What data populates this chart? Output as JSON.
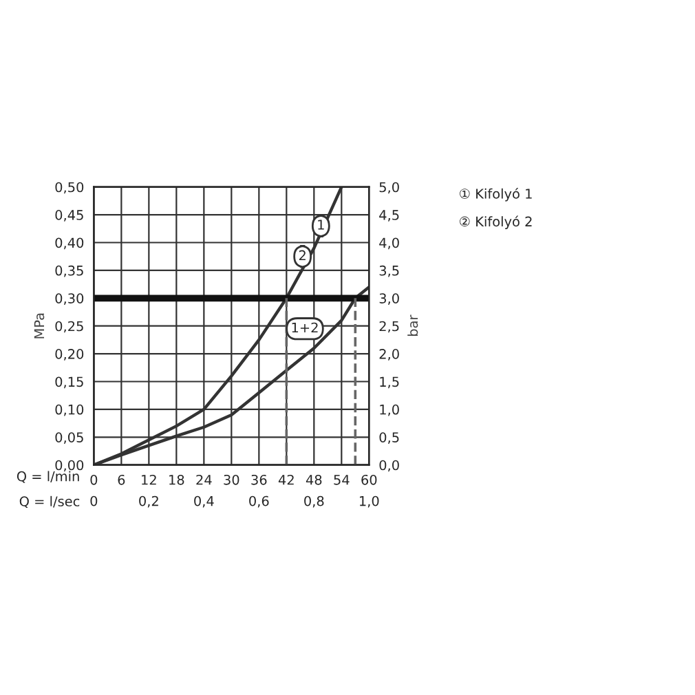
{
  "chart_data": {
    "type": "line",
    "xlabel": "Q = l/min",
    "x2label": "Q = l/sec",
    "ylabel": "MPa",
    "y2label": "bar",
    "xlim": [
      0,
      60
    ],
    "xticks": [
      0,
      6,
      12,
      18,
      24,
      30,
      36,
      42,
      48,
      54,
      60
    ],
    "x2lim": [
      0,
      1
    ],
    "x2ticks": [
      0,
      {
        "value": 0.2,
        "label": "0,2"
      },
      {
        "value": 0.4,
        "label": "0,4"
      },
      {
        "value": 0.6,
        "label": "0,6"
      },
      {
        "value": 0.8,
        "label": "0,8"
      },
      {
        "value": 1,
        "label": "1,0"
      }
    ],
    "ylim": [
      0,
      0.5
    ],
    "yticks": [
      {
        "value": 0,
        "label": "0,00"
      },
      {
        "value": 0.05,
        "label": "0,05"
      },
      {
        "value": 0.1,
        "label": "0,10"
      },
      {
        "value": 0.15,
        "label": "0,15"
      },
      {
        "value": 0.2,
        "label": "0,20"
      },
      {
        "value": 0.25,
        "label": "0,25"
      },
      {
        "value": 0.3,
        "label": "0,30"
      },
      {
        "value": 0.35,
        "label": "0,35"
      },
      {
        "value": 0.4,
        "label": "0,40"
      },
      {
        "value": 0.45,
        "label": "0,45"
      },
      {
        "value": 0.5,
        "label": "0,50"
      }
    ],
    "y2lim": [
      0,
      5
    ],
    "y2ticks": [
      {
        "value": 0,
        "label": "0,0"
      },
      {
        "value": 0.5,
        "label": "0,5"
      },
      {
        "value": 1,
        "label": "1,0"
      },
      {
        "value": 1.5,
        "label": "1,5"
      },
      {
        "value": 2,
        "label": "2,0"
      },
      {
        "value": 2.5,
        "label": "2,5"
      },
      {
        "value": 3,
        "label": "3,0"
      },
      {
        "value": 3.5,
        "label": "3,5"
      },
      {
        "value": 4,
        "label": "4,0"
      },
      {
        "value": 4.5,
        "label": "4,5"
      },
      {
        "value": 5,
        "label": "5,0"
      }
    ],
    "grid": true,
    "legend": false,
    "marker": "none",
    "line_style": "solid",
    "series": [
      {
        "color": "#333333",
        "x": [
          0,
          6,
          12,
          18,
          24,
          30,
          36,
          42,
          48,
          54
        ],
        "values": [
          0,
          0.02,
          0.045,
          0.07,
          0.1,
          0.16,
          0.225,
          0.3,
          0.39,
          0.5
        ]
      },
      {
        "color": "#333333",
        "x": [
          0,
          6,
          12,
          18,
          24,
          30,
          36,
          42,
          48,
          54,
          57,
          60
        ],
        "values": [
          0,
          0.018,
          0.035,
          0.052,
          0.068,
          0.09,
          0.13,
          0.17,
          0.21,
          0.26,
          0.3,
          0.32
        ]
      }
    ],
    "ref_lines": [
      {
        "axis": "y",
        "value": 0.3,
        "color": "#111111",
        "line_style": "solid"
      },
      {
        "axis": "x",
        "value": 42,
        "color": "#666666",
        "line_style": "dashed"
      },
      {
        "axis": "x",
        "value": 57,
        "color": "#666666",
        "line_style": "dashed"
      }
    ],
    "annotations": [
      {
        "text": "1",
        "x": 49.5,
        "y": 0.43
      },
      {
        "text": "2",
        "x": 45.5,
        "y": 0.375
      },
      {
        "text": "1+2",
        "x": 46,
        "y": 0.245
      },
      "① Kifolyó 1",
      "② Kifolyó 2"
    ]
  }
}
